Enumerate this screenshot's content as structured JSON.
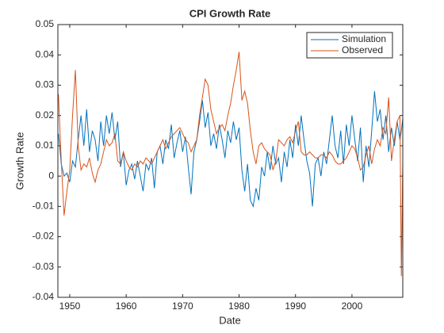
{
  "chart_data": {
    "type": "line",
    "title": "CPI Growth Rate",
    "x_label": "Date",
    "y_label": "Growth Rate",
    "x": [
      1948,
      1948.5,
      1949,
      1949.5,
      1950,
      1950.5,
      1951,
      1951.5,
      1952,
      1952.5,
      1953,
      1953.5,
      1954,
      1954.5,
      1955,
      1955.5,
      1956,
      1956.5,
      1957,
      1957.5,
      1958,
      1958.5,
      1959,
      1959.5,
      1960,
      1960.5,
      1961,
      1961.5,
      1962,
      1962.5,
      1963,
      1963.5,
      1964,
      1964.5,
      1965,
      1965.5,
      1966,
      1966.5,
      1967,
      1967.5,
      1968,
      1968.5,
      1969,
      1969.5,
      1970,
      1970.5,
      1971,
      1971.5,
      1972,
      1972.5,
      1973,
      1973.5,
      1974,
      1974.5,
      1975,
      1975.5,
      1976,
      1976.5,
      1977,
      1977.5,
      1978,
      1978.5,
      1979,
      1979.5,
      1980,
      1980.5,
      1981,
      1981.5,
      1982,
      1982.5,
      1983,
      1983.5,
      1984,
      1984.5,
      1985,
      1985.5,
      1986,
      1986.5,
      1987,
      1987.5,
      1988,
      1988.5,
      1989,
      1989.5,
      1990,
      1990.5,
      1991,
      1991.5,
      1992,
      1992.5,
      1993,
      1993.5,
      1994,
      1994.5,
      1995,
      1995.5,
      1996,
      1996.5,
      1997,
      1997.5,
      1998,
      1998.5,
      1999,
      1999.5,
      2000,
      2000.5,
      2001,
      2001.5,
      2002,
      2002.5,
      2003,
      2003.5,
      2004,
      2004.5,
      2005,
      2005.5,
      2006,
      2006.5,
      2007,
      2007.5,
      2008,
      2008.5,
      2008.75,
      2009
    ],
    "series": [
      {
        "name": "Simulation",
        "color": "#0072BD",
        "values": [
          0.014,
          0.004,
          0.0,
          0.001,
          -0.002,
          0.005,
          0.003,
          0.012,
          0.02,
          0.01,
          0.022,
          0.008,
          0.015,
          0.012,
          0.005,
          0.018,
          0.01,
          0.02,
          0.014,
          0.021,
          0.012,
          0.018,
          0.003,
          0.008,
          -0.003,
          0.002,
          0.004,
          -0.001,
          0.005,
          0.0,
          -0.005,
          0.004,
          0.002,
          0.006,
          -0.004,
          0.008,
          0.01,
          0.004,
          0.012,
          0.009,
          0.017,
          0.006,
          0.011,
          0.015,
          0.008,
          0.013,
          0.003,
          -0.006,
          0.008,
          0.012,
          0.018,
          0.025,
          0.016,
          0.021,
          0.01,
          0.014,
          0.009,
          0.017,
          0.012,
          0.006,
          0.015,
          0.011,
          0.018,
          0.012,
          0.016,
          0.002,
          -0.005,
          0.004,
          -0.008,
          -0.01,
          -0.004,
          -0.008,
          0.003,
          0.0,
          0.008,
          0.002,
          0.01,
          0.004,
          0.006,
          -0.002,
          0.008,
          0.003,
          0.012,
          0.006,
          0.017,
          0.01,
          0.02,
          0.012,
          0.005,
          0.001,
          -0.01,
          0.004,
          0.006,
          0.0,
          0.008,
          0.004,
          0.012,
          0.02,
          0.01,
          0.006,
          0.015,
          0.004,
          0.017,
          0.01,
          0.02,
          0.012,
          0.005,
          0.016,
          -0.002,
          0.01,
          0.003,
          0.015,
          0.028,
          0.018,
          0.022,
          0.012,
          0.02,
          0.008,
          0.016,
          0.01,
          0.018,
          0.012,
          0.015,
          0.019
        ]
      },
      {
        "name": "Observed",
        "color": "#D95319",
        "values": [
          0.027,
          0.005,
          -0.013,
          -0.005,
          0.002,
          0.02,
          0.035,
          0.01,
          0.002,
          0.004,
          0.003,
          0.006,
          0.001,
          -0.002,
          0.002,
          0.004,
          0.008,
          0.012,
          0.01,
          0.011,
          0.014,
          0.005,
          0.004,
          0.008,
          0.005,
          0.003,
          0.002,
          0.004,
          0.003,
          0.005,
          0.004,
          0.006,
          0.005,
          0.004,
          0.006,
          0.008,
          0.01,
          0.012,
          0.009,
          0.011,
          0.013,
          0.014,
          0.015,
          0.016,
          0.014,
          0.012,
          0.011,
          0.008,
          0.01,
          0.012,
          0.02,
          0.026,
          0.032,
          0.03,
          0.022,
          0.018,
          0.014,
          0.016,
          0.017,
          0.015,
          0.02,
          0.024,
          0.03,
          0.035,
          0.041,
          0.025,
          0.028,
          0.024,
          0.015,
          0.008,
          0.004,
          0.01,
          0.011,
          0.009,
          0.008,
          0.007,
          0.002,
          0.005,
          0.012,
          0.011,
          0.01,
          0.012,
          0.013,
          0.011,
          0.015,
          0.018,
          0.008,
          0.007,
          0.007,
          0.008,
          0.007,
          0.006,
          0.006,
          0.007,
          0.007,
          0.006,
          0.008,
          0.007,
          0.005,
          0.004,
          0.004,
          0.005,
          0.006,
          0.008,
          0.01,
          0.009,
          0.006,
          0.002,
          0.003,
          0.007,
          0.01,
          0.004,
          0.009,
          0.012,
          0.01,
          0.016,
          0.014,
          0.026,
          0.005,
          0.012,
          0.018,
          0.02,
          -0.033,
          0.005
        ]
      }
    ],
    "xlim": [
      1947.9,
      2009
    ],
    "ylim": [
      -0.04,
      0.05
    ],
    "xticks": [
      1950,
      1960,
      1970,
      1980,
      1990,
      2000
    ],
    "yticks": [
      -0.04,
      -0.03,
      -0.02,
      -0.01,
      0,
      0.01,
      0.02,
      0.03,
      0.04,
      0.05
    ],
    "legend": "upper right"
  }
}
